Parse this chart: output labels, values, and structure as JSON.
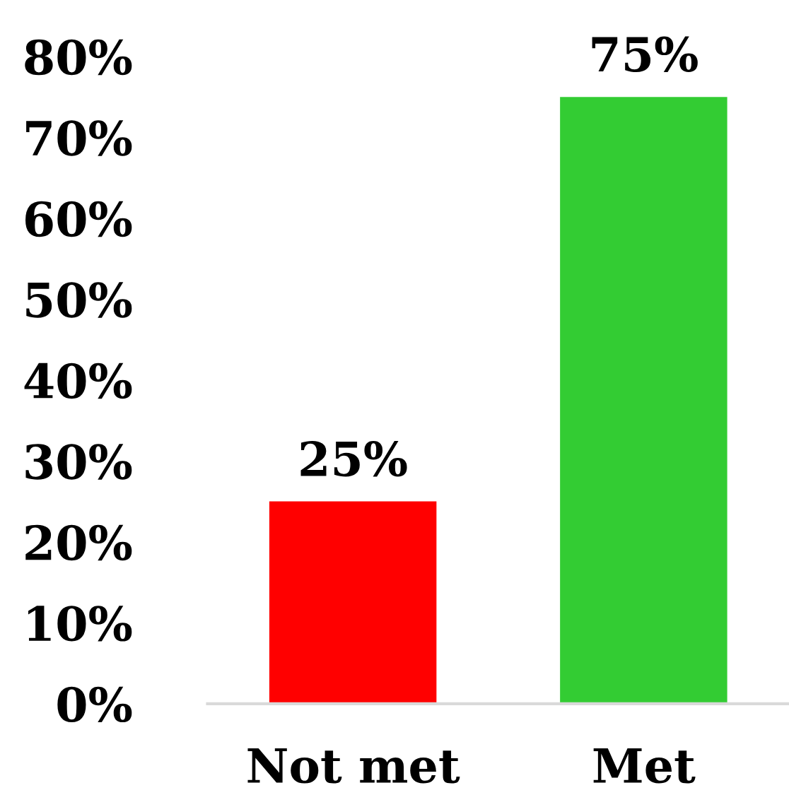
{
  "chart_data": {
    "type": "bar",
    "categories": [
      "Not met",
      "Met"
    ],
    "values": [
      25,
      75
    ],
    "colors": [
      "#ff0000",
      "#33cc33"
    ],
    "value_labels": [
      "25%",
      "75%"
    ],
    "ylim": [
      0,
      80
    ],
    "yticks": [
      {
        "value": 0,
        "label": "0%"
      },
      {
        "value": 10,
        "label": "10%"
      },
      {
        "value": 20,
        "label": "20%"
      },
      {
        "value": 30,
        "label": "30%"
      },
      {
        "value": 40,
        "label": "40%"
      },
      {
        "value": 50,
        "label": "50%"
      },
      {
        "value": 60,
        "label": "60%"
      },
      {
        "value": 70,
        "label": "70%"
      },
      {
        "value": 80,
        "label": "80%"
      }
    ],
    "grid": false
  }
}
